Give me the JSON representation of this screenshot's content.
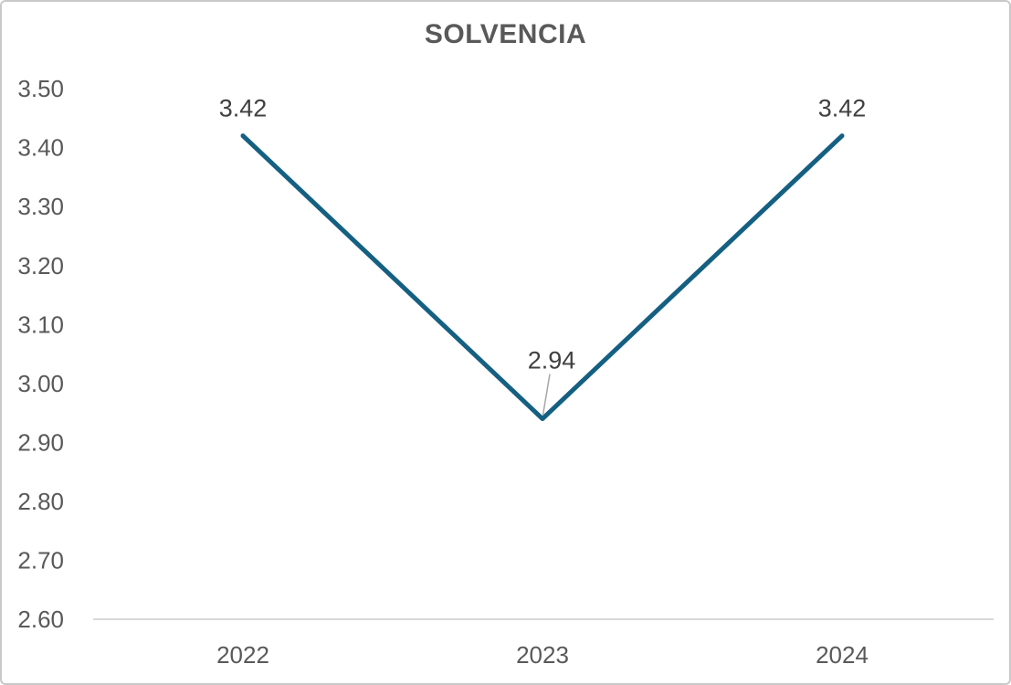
{
  "window": {
    "background": "#ffffff",
    "border_color": "#c9c9c9"
  },
  "chart_data": {
    "type": "line",
    "title": "SOLVENCIA",
    "categories": [
      "2022",
      "2023",
      "2024"
    ],
    "series": [
      {
        "name": "SOLVENCIA",
        "values": [
          3.42,
          2.94,
          3.42
        ]
      }
    ],
    "data_labels": [
      "3.42",
      "2.94",
      "3.42"
    ],
    "xlabel": "",
    "ylabel": "",
    "ylim": [
      2.6,
      3.5
    ],
    "ytick_step": 0.1,
    "ytick_labels": [
      "3.50",
      "3.40",
      "3.30",
      "3.20",
      "3.10",
      "3.00",
      "2.90",
      "2.80",
      "2.70",
      "2.60"
    ],
    "grid": false,
    "legend": "none",
    "colors": {
      "line": "#156082",
      "axis_line": "#d9d9d9",
      "tick_label": "#595959",
      "data_label": "#404040",
      "title": "#595959",
      "leader_line": "#a6a6a6"
    }
  }
}
